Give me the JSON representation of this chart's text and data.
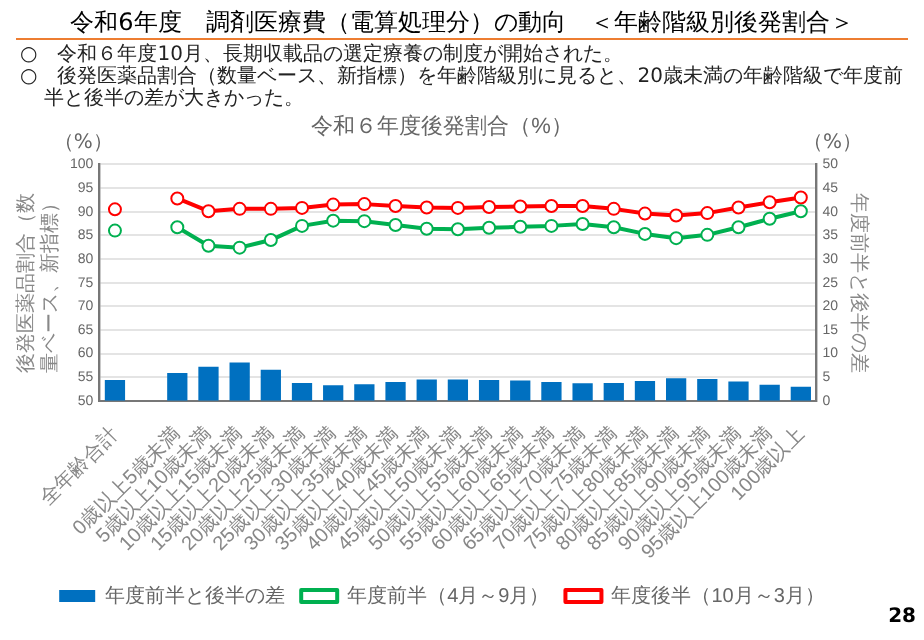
{
  "chart_data": {
    "type": "bar",
    "title": "令和６年度後発割合（%）",
    "categories": [
      "全年齢合計",
      null,
      "0歳以上5歳未満",
      "5歳以上10歳未満",
      "10歳以上15歳未満",
      "15歳以上20歳未満",
      "20歳以上25歳未満",
      "25歳以上30歳未満",
      "30歳以上35歳未満",
      "35歳以上40歳未満",
      "40歳以上45歳未満",
      "45歳以上50歳未満",
      "50歳以上55歳未満",
      "55歳以上60歳未満",
      "60歳以上65歳未満",
      "65歳以上70歳未満",
      "70歳以上75歳未満",
      "75歳以上80歳未満",
      "80歳以上85歳未満",
      "85歳以上90歳未満",
      "90歳以上95歳未満",
      "95歳以上100歳未満",
      "100歳以上"
    ],
    "series": [
      {
        "name": "年度前半と後半の差",
        "axis": "y2",
        "color": "#0070c0",
        "values": [
          4.4,
          null,
          5.9,
          7.2,
          8.1,
          6.6,
          3.8,
          3.3,
          3.5,
          4.0,
          4.5,
          4.5,
          4.4,
          4.3,
          4.0,
          3.7,
          3.8,
          4.2,
          4.8,
          4.6,
          4.1,
          3.4,
          3.0
        ]
      },
      {
        "name": "年度前半（4月～9月）",
        "type": "line",
        "color": "#00b050",
        "values": [
          86.0,
          null,
          86.7,
          82.8,
          82.4,
          84.0,
          87.0,
          88.1,
          88.0,
          87.2,
          86.4,
          86.3,
          86.6,
          86.8,
          87.0,
          87.4,
          86.7,
          85.3,
          84.4,
          85.1,
          86.7,
          88.5,
          90.1
        ]
      },
      {
        "name": "年度後半（10月～3月）",
        "type": "line",
        "color": "#ff0000",
        "values": [
          90.5,
          null,
          92.8,
          90.1,
          90.6,
          90.6,
          90.8,
          91.5,
          91.6,
          91.2,
          90.9,
          90.8,
          91.0,
          91.1,
          91.2,
          91.2,
          90.6,
          89.6,
          89.2,
          89.7,
          90.9,
          92.0,
          93.0
        ]
      }
    ],
    "ylim": [
      50,
      100
    ],
    "yticks": [
      50,
      55,
      60,
      65,
      70,
      75,
      80,
      85,
      90,
      95,
      100
    ],
    "y2lim": [
      0,
      50
    ],
    "y2ticks": [
      0,
      5,
      10,
      15,
      20,
      25,
      30,
      35,
      40,
      45,
      50
    ],
    "ylabel": "後発医薬品割合（数量ベース、新指標）",
    "y2label": "年度前半と後半の差",
    "grid": "y",
    "legend": "bottom",
    "marker": "circle",
    "annotations": [
      "令和6年度　調剤医療費（電算処理分）の動向　＜年齢階級別後発割合＞",
      "○　令和６年度10月、長期収載品の選定療養の制度が開始された。",
      "○　後発医薬品割合（数量ベース、新指標）を年齢階級別に見ると、20歳未満の年齢階級で年度前半と後半の差が大きかった。",
      "（%）",
      "（%）",
      "28"
    ]
  }
}
